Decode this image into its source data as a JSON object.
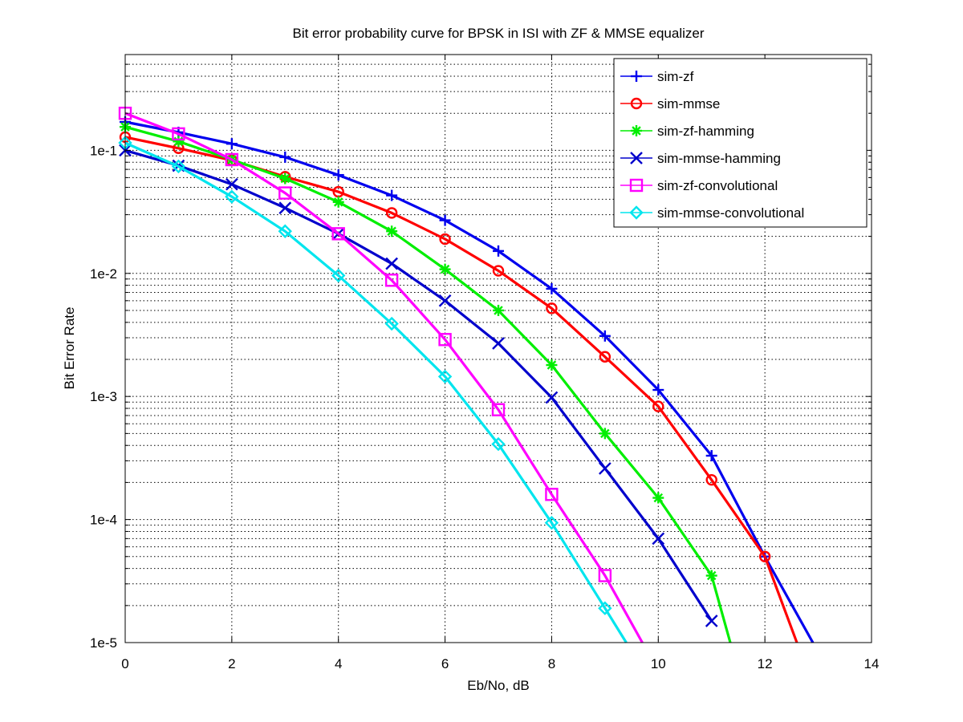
{
  "chart_data": {
    "type": "line",
    "title": "Bit error probability curve for BPSK in ISI with ZF & MMSE equalizer",
    "xlabel": "Eb/No, dB",
    "ylabel": "Bit Error Rate",
    "xlim": [
      0,
      14
    ],
    "ylim": [
      1e-05,
      0.6
    ],
    "yscale": "log",
    "grid": true,
    "legend_position": "top-right",
    "x_ticks": [
      0,
      2,
      4,
      6,
      8,
      10,
      12,
      14
    ],
    "x_tick_labels": [
      "0",
      "2",
      "4",
      "6",
      "8",
      "10",
      "12",
      "14"
    ],
    "y_ticks": [
      1e-05,
      0.0001,
      0.001,
      0.01,
      0.1
    ],
    "y_tick_labels": [
      "1e-5",
      "1e-4",
      "1e-3",
      "1e-2",
      "1e-1"
    ],
    "series": [
      {
        "name": "sim-zf",
        "color": "#0000ee",
        "marker": "plus",
        "x": [
          0,
          1,
          2,
          3,
          4,
          5,
          6,
          7,
          8,
          9,
          10,
          11,
          12,
          12.9
        ],
        "y": [
          0.17,
          0.14,
          0.113,
          0.088,
          0.063,
          0.043,
          0.027,
          0.0152,
          0.0075,
          0.0031,
          0.00113,
          0.00033,
          5e-05,
          1e-05
        ]
      },
      {
        "name": "sim-mmse",
        "color": "#ff0000",
        "marker": "circle",
        "x": [
          0,
          1,
          2,
          3,
          4,
          5,
          6,
          7,
          8,
          9,
          10,
          11,
          12,
          12.6
        ],
        "y": [
          0.128,
          0.104,
          0.083,
          0.061,
          0.046,
          0.031,
          0.019,
          0.0105,
          0.0052,
          0.0021,
          0.00083,
          0.00021,
          5e-05,
          1e-05
        ]
      },
      {
        "name": "sim-zf-hamming",
        "color": "#00ee00",
        "marker": "star",
        "x": [
          0,
          1,
          2,
          3,
          4,
          5,
          6,
          7,
          8,
          9,
          10,
          11,
          11.35
        ],
        "y": [
          0.155,
          0.118,
          0.084,
          0.059,
          0.038,
          0.022,
          0.0108,
          0.005,
          0.0018,
          0.0005,
          0.00015,
          3.5e-05,
          1e-05
        ]
      },
      {
        "name": "sim-mmse-hamming",
        "color": "#0000cc",
        "marker": "x",
        "x": [
          0,
          1,
          2,
          3,
          4,
          5,
          6,
          7,
          8,
          9,
          10,
          11
        ],
        "y": [
          0.1,
          0.075,
          0.053,
          0.034,
          0.021,
          0.012,
          0.006,
          0.0027,
          0.00098,
          0.00026,
          7e-05,
          1.5e-05
        ]
      },
      {
        "name": "sim-zf-convolutional",
        "color": "#ff00ff",
        "marker": "square",
        "x": [
          0,
          1,
          2,
          3,
          4,
          5,
          6,
          7,
          8,
          9,
          9.7
        ],
        "y": [
          0.2,
          0.136,
          0.084,
          0.045,
          0.021,
          0.0088,
          0.0029,
          0.00078,
          0.00016,
          3.5e-05,
          1e-05
        ]
      },
      {
        "name": "sim-mmse-convolutional",
        "color": "#00e5ee",
        "marker": "diamond",
        "x": [
          0,
          1,
          2,
          3,
          4,
          5,
          6,
          7,
          8,
          9,
          9.4
        ],
        "y": [
          0.115,
          0.074,
          0.042,
          0.022,
          0.0096,
          0.0039,
          0.00145,
          0.00041,
          9.4e-05,
          1.9e-05,
          1e-05
        ]
      }
    ]
  }
}
